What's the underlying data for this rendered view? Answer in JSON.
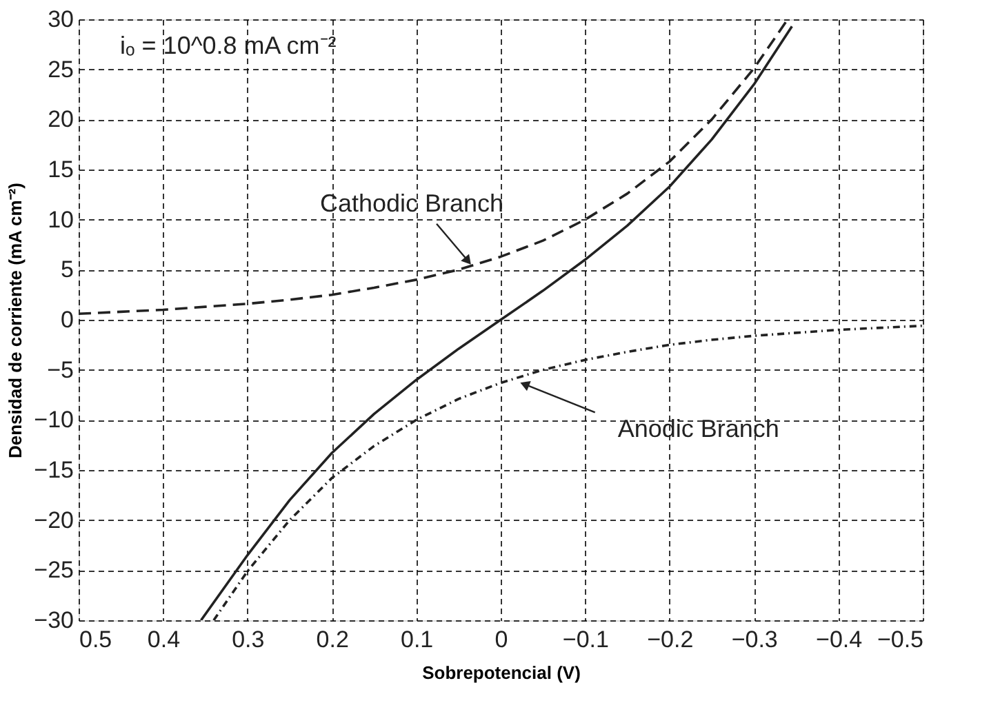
{
  "chart_data": {
    "type": "line",
    "xlabel": "Sobrepotencial (V)",
    "ylabel": "Densidad de corriente (mA cm⁻²)",
    "xlim": [
      0.5,
      -0.5
    ],
    "ylim": [
      -30,
      30
    ],
    "xticks": [
      0.5,
      0.4,
      0.3,
      0.2,
      0.1,
      0,
      -0.1,
      -0.2,
      -0.3,
      -0.4,
      -0.5
    ],
    "yticks": [
      -30,
      -25,
      -20,
      -15,
      -10,
      -5,
      0,
      5,
      10,
      15,
      20,
      25,
      30
    ],
    "grid": true,
    "series": [
      {
        "color": "#222222",
        "line_style": "solid",
        "x": [
          0.355,
          0.3,
          0.25,
          0.2,
          0.15,
          0.1,
          0.05,
          0,
          -0.05,
          -0.1,
          -0.15,
          -0.2,
          -0.25,
          -0.3,
          -0.345
        ],
        "values": [
          -30,
          -23.5,
          -18,
          -13.3,
          -9.4,
          -6,
          -2.9,
          0,
          2.9,
          6,
          9.4,
          13.3,
          18,
          23.5,
          29.3
        ]
      },
      {
        "color": "#222222",
        "line_style": "dashed",
        "x": [
          0.5,
          0.45,
          0.4,
          0.35,
          0.3,
          0.25,
          0.2,
          0.15,
          0.1,
          0.05,
          0,
          -0.05,
          -0.1,
          -0.15,
          -0.2,
          -0.25,
          -0.3,
          -0.34
        ],
        "values": [
          0.6,
          0.8,
          1.0,
          1.3,
          1.6,
          2.0,
          2.5,
          3.2,
          4.0,
          5.0,
          6.3,
          7.9,
          10,
          12.6,
          15.8,
          20,
          25.1,
          30
        ]
      },
      {
        "color": "#222222",
        "line_style": "dotted",
        "x": [
          0.34,
          0.3,
          0.25,
          0.2,
          0.15,
          0.1,
          0.05,
          0,
          -0.05,
          -0.1,
          -0.15,
          -0.2,
          -0.25,
          -0.3,
          -0.35,
          -0.4,
          -0.45,
          -0.5
        ],
        "values": [
          -30,
          -25.1,
          -20,
          -15.8,
          -12.6,
          -10,
          -7.9,
          -6.3,
          -5.0,
          -4.0,
          -3.2,
          -2.5,
          -2.0,
          -1.6,
          -1.3,
          -1.0,
          -0.8,
          -0.6
        ]
      }
    ],
    "annotations": [
      "iₒ = 10^0.8 mA cm⁻²",
      {
        "text": "Cathodic Branch",
        "x": 0.04,
        "y": 6
      },
      {
        "text": "Anodic Branch",
        "x": -0.03,
        "y": -6.5
      }
    ]
  }
}
